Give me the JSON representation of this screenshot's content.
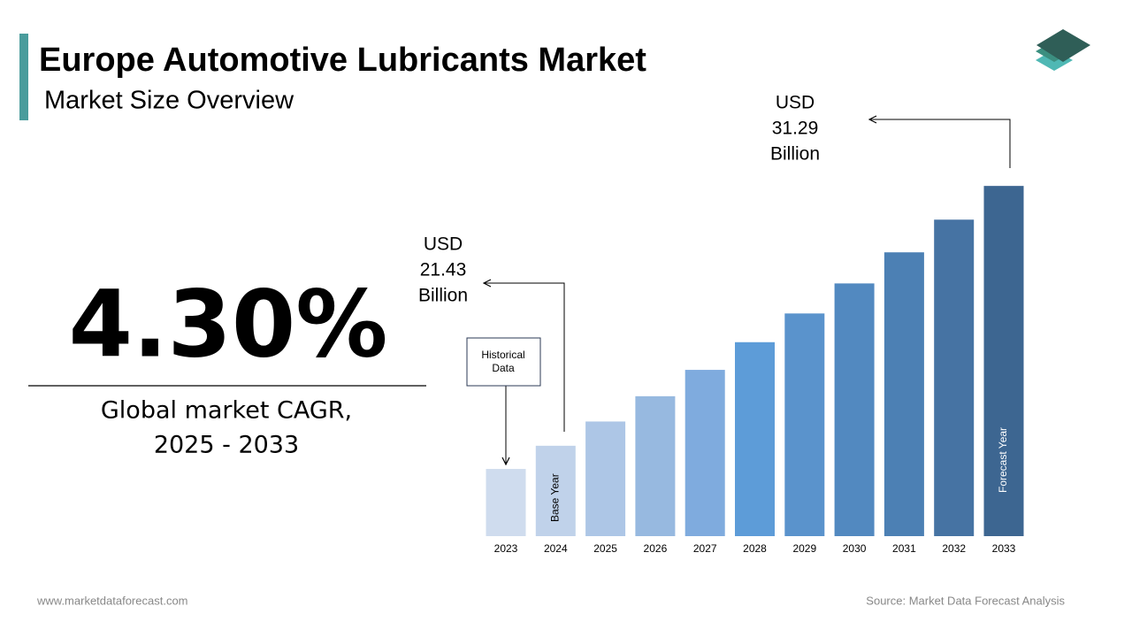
{
  "header": {
    "title": "Europe Automotive Lubricants Market",
    "subtitle": "Market Size Overview"
  },
  "headline": {
    "cagr": "4.30%",
    "caption": [
      "Global market CAGR,",
      "2025 - 2033"
    ]
  },
  "footer": {
    "website": "www.marketdataforecast.com",
    "source": "Source: Market Data Forecast Analysis"
  },
  "chart_data": {
    "type": "bar",
    "categories": [
      "2023",
      "2024",
      "2025",
      "2026",
      "2027",
      "2028",
      "2029",
      "2030",
      "2031",
      "2032",
      "2033"
    ],
    "values": [
      20.55,
      21.43,
      22.35,
      23.31,
      24.31,
      25.36,
      26.45,
      27.59,
      28.77,
      30.01,
      31.29
    ],
    "colors": [
      "#cfdcee",
      "#c0d2ea",
      "#adc6e6",
      "#97b9e0",
      "#7fabde",
      "#5d9cd8",
      "#5a93cc",
      "#5289c0",
      "#4c80b4",
      "#4673a3",
      "#3d6691"
    ],
    "ylim": [
      18,
      32
    ],
    "annotations": {
      "historical": [
        "Historical",
        "Data"
      ],
      "base_year": "Base Year",
      "forecast_year": "Forecast Year",
      "currency": "USD",
      "unit": "Billion"
    }
  }
}
